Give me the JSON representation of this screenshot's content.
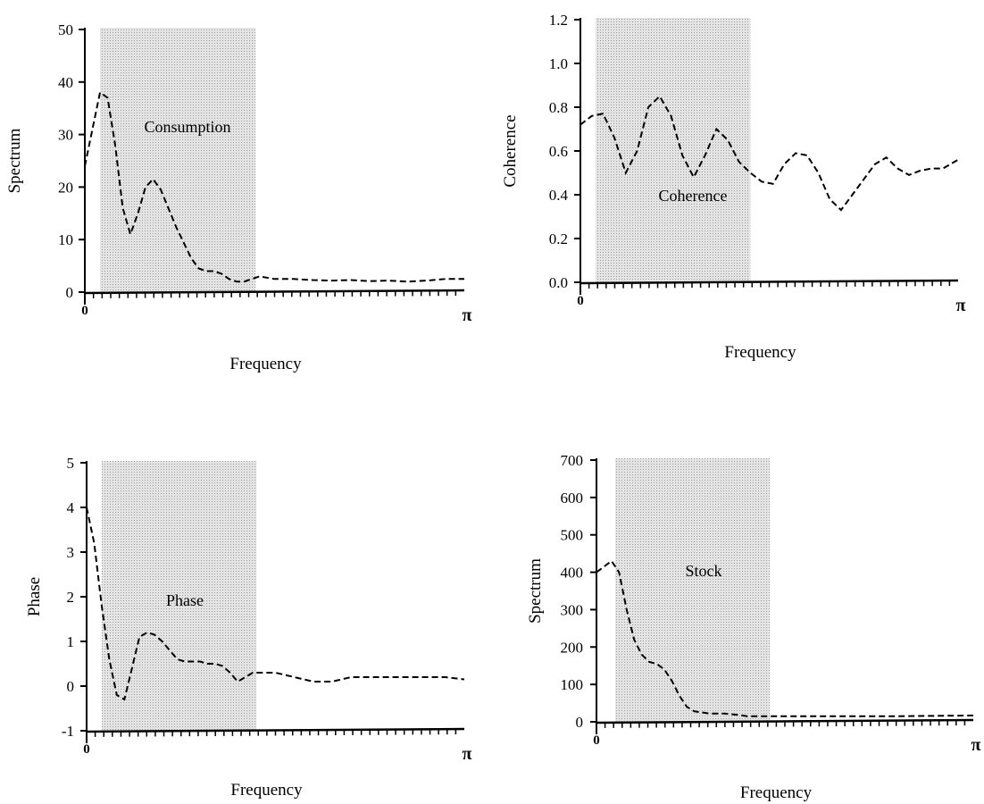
{
  "colors": {
    "shade": "#d7d7d7",
    "line": "#000000"
  },
  "chart_data": [
    {
      "type": "line",
      "xlabel": "Frequency",
      "ylabel": "Spectrum",
      "annotation": "Consumption",
      "x_tick_labels": [
        "0",
        "π"
      ],
      "xlim": [
        0,
        1
      ],
      "ylim": [
        0,
        50
      ],
      "y_ticks": [
        0,
        10,
        20,
        30,
        40,
        50
      ],
      "y_tick_labels": [
        "0",
        "10",
        "20",
        "30",
        "40",
        "50"
      ],
      "shaded_band": [
        0.04,
        0.45
      ],
      "line_style": "dashed",
      "series": [
        {
          "x": [
            0,
            0.02,
            0.04,
            0.06,
            0.08,
            0.1,
            0.12,
            0.14,
            0.16,
            0.18,
            0.2,
            0.22,
            0.24,
            0.26,
            0.28,
            0.3,
            0.32,
            0.34,
            0.36,
            0.38,
            0.4,
            0.42,
            0.44,
            0.46,
            0.5,
            0.55,
            0.6,
            0.65,
            0.7,
            0.75,
            0.8,
            0.85,
            0.9,
            0.95,
            1.0
          ],
          "values": [
            24,
            31,
            38,
            37,
            28,
            16,
            11,
            15,
            20,
            21.5,
            19.5,
            16,
            12.5,
            9.5,
            6.5,
            4.5,
            4,
            4,
            3.5,
            2.5,
            2,
            2,
            2.5,
            3,
            2.5,
            2.5,
            2.3,
            2.2,
            2.3,
            2.1,
            2.2,
            2,
            2.2,
            2.5,
            2.5
          ]
        }
      ]
    },
    {
      "type": "line",
      "xlabel": "Frequency",
      "ylabel": "Coherence",
      "annotation": "Coherence",
      "x_tick_labels": [
        "0",
        "π"
      ],
      "xlim": [
        0,
        1
      ],
      "ylim": [
        0,
        1.2
      ],
      "y_ticks": [
        0,
        0.2,
        0.4,
        0.6,
        0.8,
        1.0,
        1.2
      ],
      "y_tick_labels": [
        "0.0",
        "0.2",
        "0.4",
        "0.6",
        "0.8",
        "1.0",
        "1.2"
      ],
      "shaded_band": [
        0.04,
        0.45
      ],
      "line_style": "dashed",
      "series": [
        {
          "x": [
            0,
            0.03,
            0.06,
            0.09,
            0.12,
            0.15,
            0.18,
            0.21,
            0.24,
            0.27,
            0.3,
            0.33,
            0.36,
            0.39,
            0.42,
            0.45,
            0.48,
            0.51,
            0.54,
            0.57,
            0.6,
            0.63,
            0.66,
            0.69,
            0.72,
            0.75,
            0.78,
            0.81,
            0.84,
            0.87,
            0.9,
            0.93,
            0.96,
            1.0
          ],
          "values": [
            0.72,
            0.76,
            0.77,
            0.66,
            0.5,
            0.6,
            0.8,
            0.85,
            0.76,
            0.58,
            0.48,
            0.58,
            0.7,
            0.65,
            0.55,
            0.5,
            0.46,
            0.45,
            0.54,
            0.59,
            0.58,
            0.5,
            0.38,
            0.33,
            0.4,
            0.47,
            0.54,
            0.57,
            0.52,
            0.49,
            0.51,
            0.52,
            0.52,
            0.56
          ]
        }
      ]
    },
    {
      "type": "line",
      "xlabel": "Frequency",
      "ylabel": "Phase",
      "annotation": "Phase",
      "x_tick_labels": [
        "0",
        "π"
      ],
      "xlim": [
        0,
        1
      ],
      "ylim": [
        -1,
        5
      ],
      "y_ticks": [
        -1,
        0,
        1,
        2,
        3,
        4,
        5
      ],
      "y_tick_labels": [
        "-1",
        "0",
        "1",
        "2",
        "3",
        "4",
        "5"
      ],
      "shaded_band": [
        0.04,
        0.45
      ],
      "line_style": "dashed",
      "series": [
        {
          "x": [
            0,
            0.02,
            0.04,
            0.06,
            0.08,
            0.1,
            0.12,
            0.14,
            0.16,
            0.18,
            0.2,
            0.22,
            0.24,
            0.26,
            0.28,
            0.3,
            0.32,
            0.34,
            0.36,
            0.38,
            0.4,
            0.42,
            0.44,
            0.46,
            0.5,
            0.55,
            0.6,
            0.65,
            0.7,
            0.75,
            0.8,
            0.85,
            0.9,
            0.95,
            1.0
          ],
          "values": [
            4,
            3.2,
            1.8,
            0.6,
            -0.2,
            -0.3,
            0.4,
            1.1,
            1.2,
            1.15,
            1.0,
            0.8,
            0.6,
            0.55,
            0.55,
            0.55,
            0.5,
            0.5,
            0.45,
            0.3,
            0.1,
            0.2,
            0.3,
            0.3,
            0.3,
            0.2,
            0.1,
            0.1,
            0.2,
            0.2,
            0.2,
            0.2,
            0.2,
            0.2,
            0.15
          ]
        }
      ]
    },
    {
      "type": "line",
      "xlabel": "Frequency",
      "ylabel": "Spectrum",
      "annotation": "Stock",
      "x_tick_labels": [
        "0",
        "π"
      ],
      "xlim": [
        0,
        1
      ],
      "ylim": [
        0,
        700
      ],
      "y_ticks": [
        0,
        100,
        200,
        300,
        400,
        500,
        600,
        700
      ],
      "y_tick_labels": [
        "0",
        "100",
        "200",
        "300",
        "400",
        "500",
        "600",
        "700"
      ],
      "shaded_band": [
        0.05,
        0.46
      ],
      "line_style": "dashed",
      "series": [
        {
          "x": [
            0,
            0.02,
            0.04,
            0.06,
            0.08,
            0.1,
            0.12,
            0.14,
            0.16,
            0.18,
            0.2,
            0.22,
            0.24,
            0.26,
            0.28,
            0.3,
            0.32,
            0.34,
            0.36,
            0.38,
            0.4,
            0.45,
            0.5,
            0.6,
            0.7,
            0.8,
            0.9,
            1.0
          ],
          "values": [
            400,
            415,
            430,
            400,
            300,
            220,
            180,
            160,
            155,
            140,
            110,
            70,
            40,
            28,
            25,
            22,
            22,
            22,
            20,
            18,
            15,
            15,
            15,
            15,
            15,
            15,
            16,
            17
          ]
        }
      ]
    }
  ]
}
